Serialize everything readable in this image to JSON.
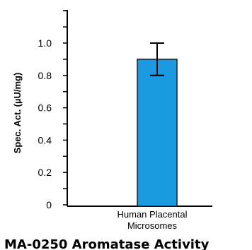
{
  "chart_data": {
    "type": "bar",
    "title": "MA-0250 Aromatase Activity",
    "ylabel": "Spec. Act.  (µU/mg)",
    "xlabel": "",
    "categories": [
      [
        "Human Placental",
        "Microsomes"
      ]
    ],
    "values": [
      0.9
    ],
    "error": [
      0.1
    ],
    "ylim": [
      0,
      1.2
    ],
    "yticks": [
      0,
      0.2,
      0.4,
      0.6,
      0.8,
      1.0
    ],
    "ytick_labels": [
      "0",
      "0.2",
      "0.4",
      "0.6",
      "0.8",
      "1.0"
    ],
    "grid": false,
    "colors": {
      "bar": "#1a9ae0",
      "bar_edge": "#1a1a1a",
      "axis": "#000000"
    }
  }
}
